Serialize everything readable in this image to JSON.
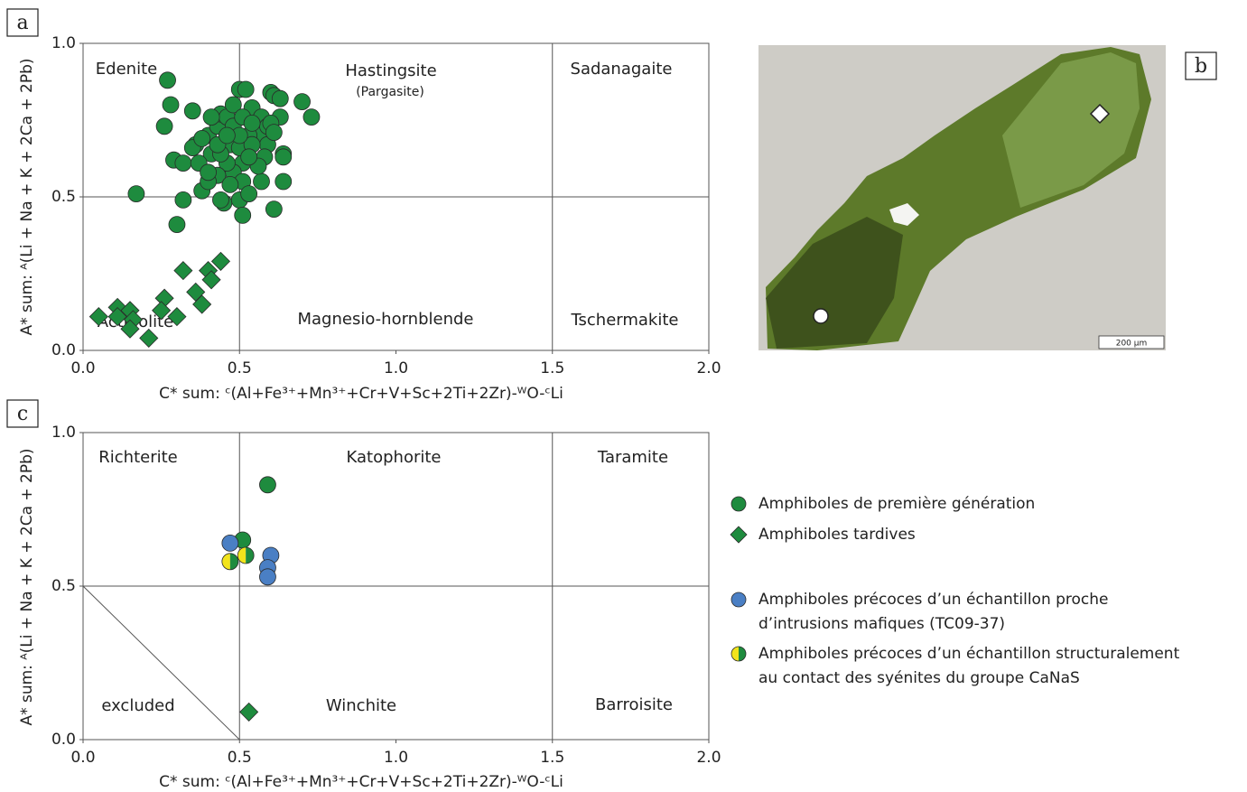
{
  "chart_data": [
    {
      "type": "scatter",
      "title": "a",
      "x_label": "C* sum: ᶜ(Al+Fe³⁺+Mn³⁺+Cr+V+Sc+2Ti+2Zr)-ᵂO-ᶜLi",
      "y_label": "A* sum: ᴬ(Li + Na + K + 2Ca + 2Pb)",
      "xlim": [
        0,
        2
      ],
      "ylim": [
        0,
        1
      ],
      "xticks": [
        {
          "value": 0,
          "label": "0.0"
        },
        0.5,
        {
          "value": 1,
          "label": "1.0"
        },
        1.5,
        {
          "value": 2,
          "label": "2.0"
        }
      ],
      "yticks": [
        {
          "value": 0,
          "label": "0.0"
        },
        0.5,
        {
          "value": 1,
          "label": "1.0"
        }
      ],
      "annotations": [
        "Edenite",
        "Hastingsite",
        "(Pargasite)",
        "Sadanagaite",
        "Actinolite",
        "Magnesio-hornblende",
        "Tschermakite"
      ],
      "series": [
        {
          "marker": "circle",
          "color": "#1e8b3e",
          "x": [
            0.27,
            0.28,
            0.26,
            0.35,
            0.29,
            0.32,
            0.17,
            0.32,
            0.3,
            0.36,
            0.38,
            0.4,
            0.43,
            0.44,
            0.46,
            0.48,
            0.5,
            0.52,
            0.54,
            0.56,
            0.57,
            0.6,
            0.61,
            0.63,
            0.63,
            0.64,
            0.59,
            0.58,
            0.45,
            0.44,
            0.5,
            0.51,
            0.61,
            0.64,
            0.64,
            0.7,
            0.73,
            0.51,
            0.48,
            0.46,
            0.43,
            0.41,
            0.47,
            0.53,
            0.5,
            0.54,
            0.51,
            0.57,
            0.4,
            0.37,
            0.4,
            0.44,
            0.47,
            0.53,
            0.56,
            0.59,
            0.48,
            0.51,
            0.54,
            0.43,
            0.35,
            0.38,
            0.5,
            0.53,
            0.6,
            0.46,
            0.41,
            0.61
          ],
          "y": [
            0.88,
            0.8,
            0.73,
            0.78,
            0.62,
            0.61,
            0.51,
            0.49,
            0.41,
            0.67,
            0.52,
            0.7,
            0.73,
            0.77,
            0.76,
            0.73,
            0.85,
            0.85,
            0.79,
            0.7,
            0.76,
            0.84,
            0.83,
            0.82,
            0.76,
            0.64,
            0.67,
            0.63,
            0.48,
            0.49,
            0.49,
            0.44,
            0.46,
            0.55,
            0.63,
            0.81,
            0.76,
            0.61,
            0.58,
            0.61,
            0.57,
            0.64,
            0.67,
            0.7,
            0.66,
            0.67,
            0.55,
            0.55,
            0.55,
            0.61,
            0.58,
            0.64,
            0.54,
            0.51,
            0.6,
            0.73,
            0.8,
            0.76,
            0.74,
            0.67,
            0.66,
            0.69,
            0.7,
            0.63,
            0.74,
            0.7,
            0.76,
            0.71
          ]
        },
        {
          "marker": "diamond",
          "color": "#1e8b3e",
          "x": [
            0.05,
            0.11,
            0.15,
            0.16,
            0.15,
            0.21,
            0.26,
            0.25,
            0.3,
            0.32,
            0.36,
            0.38,
            0.4,
            0.41,
            0.44,
            0.11
          ],
          "y": [
            0.11,
            0.14,
            0.13,
            0.1,
            0.07,
            0.04,
            0.17,
            0.13,
            0.11,
            0.26,
            0.19,
            0.15,
            0.26,
            0.23,
            0.29,
            0.11
          ]
        }
      ]
    },
    {
      "type": "scatter",
      "title": "c",
      "x_label": "C* sum: ᶜ(Al+Fe³⁺+Mn³⁺+Cr+V+Sc+2Ti+2Zr)-ᵂO-ᶜLi",
      "y_label": "A* sum: ᴬ(Li + Na + K + 2Ca + 2Pb)",
      "xlim": [
        0,
        2
      ],
      "ylim": [
        0,
        1
      ],
      "xticks": [
        {
          "value": 0,
          "label": "0.0"
        },
        0.5,
        {
          "value": 1,
          "label": "1.0"
        },
        1.5,
        {
          "value": 2,
          "label": "2.0"
        }
      ],
      "yticks": [
        {
          "value": 0,
          "label": "0.0"
        },
        0.5,
        {
          "value": 1,
          "label": "1.0"
        }
      ],
      "annotations": [
        "Richterite",
        "Katophorite",
        "Taramite",
        "excluded",
        "Winchite",
        "Barroisite"
      ],
      "series": [
        {
          "name": "Amphiboles de première génération",
          "marker": "circle",
          "color": "#1e8b3e",
          "x": [
            0.59,
            0.51
          ],
          "y": [
            0.83,
            0.65
          ]
        },
        {
          "name": "Amphiboles tardives",
          "marker": "diamond",
          "color": "#1e8b3e",
          "x": [
            0.53
          ],
          "y": [
            0.09
          ]
        },
        {
          "name": "Amphiboles précoces d’un échantillon proche d’intrusions mafiques (TC09-37)",
          "marker": "circle",
          "color": "#4a7fc4",
          "x": [
            0.47,
            0.6,
            0.59,
            0.59
          ],
          "y": [
            0.64,
            0.6,
            0.56,
            0.53
          ]
        },
        {
          "name": "Amphiboles précoces d’un échantillon structuralement au contact des syénites du groupe CaNaS",
          "marker": "half",
          "color": "#1e8b3e",
          "color2": "#f2e41c",
          "x": [
            0.47,
            0.52
          ],
          "y": [
            0.58,
            0.6
          ]
        }
      ]
    }
  ],
  "photo": {
    "label": "b",
    "scale_bar": "200 µm"
  }
}
